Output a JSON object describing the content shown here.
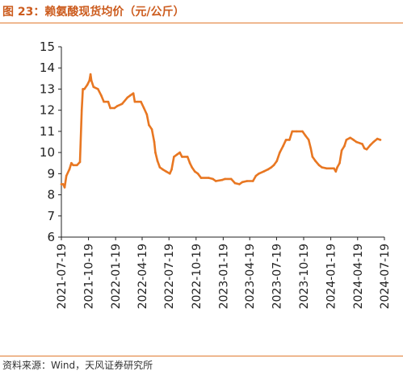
{
  "header": {
    "figure_label": "图 23：",
    "title": "赖氨酸现货均价（元/公斤）"
  },
  "source": "资料来源：Wind，天风证券研究所",
  "colors": {
    "accent": "#cc5c1e",
    "line": "#e87722",
    "rule": "#e07a2e"
  },
  "chart_data": {
    "type": "line",
    "title": "赖氨酸现货均价（元/公斤）",
    "xlabel": "",
    "ylabel": "",
    "ylim": [
      6,
      15
    ],
    "yticks": [
      6,
      7,
      8,
      9,
      10,
      11,
      12,
      13,
      14,
      15
    ],
    "xticks": [
      "2021-07-19",
      "2021-10-19",
      "2022-01-19",
      "2022-04-19",
      "2022-07-19",
      "2022-10-19",
      "2023-01-19",
      "2023-04-19",
      "2023-07-19",
      "2023-10-19",
      "2024-01-19",
      "2024-04-19",
      "2024-07-19"
    ],
    "grid": false,
    "legend": "none",
    "series": [
      {
        "name": "",
        "points": [
          [
            "2021-07-19",
            8.5
          ],
          [
            "2021-07-25",
            8.5
          ],
          [
            "2021-07-30",
            8.35
          ],
          [
            "2021-08-05",
            8.9
          ],
          [
            "2021-08-15",
            9.2
          ],
          [
            "2021-08-22",
            9.5
          ],
          [
            "2021-08-28",
            9.4
          ],
          [
            "2021-09-10",
            9.4
          ],
          [
            "2021-09-20",
            9.55
          ],
          [
            "2021-09-26",
            12.0
          ],
          [
            "2021-09-30",
            13.0
          ],
          [
            "2021-10-05",
            13.0
          ],
          [
            "2021-10-15",
            13.2
          ],
          [
            "2021-10-22",
            13.4
          ],
          [
            "2021-10-26",
            13.7
          ],
          [
            "2021-10-29",
            13.4
          ],
          [
            "2021-11-05",
            13.1
          ],
          [
            "2021-11-20",
            13.0
          ],
          [
            "2021-12-01",
            12.7
          ],
          [
            "2021-12-10",
            12.4
          ],
          [
            "2021-12-25",
            12.4
          ],
          [
            "2022-01-01",
            12.1
          ],
          [
            "2022-01-15",
            12.1
          ],
          [
            "2022-01-25",
            12.2
          ],
          [
            "2022-02-10",
            12.3
          ],
          [
            "2022-02-28",
            12.6
          ],
          [
            "2022-03-10",
            12.7
          ],
          [
            "2022-03-20",
            12.8
          ],
          [
            "2022-03-25",
            12.4
          ],
          [
            "2022-04-05",
            12.4
          ],
          [
            "2022-04-15",
            12.4
          ],
          [
            "2022-04-25",
            12.1
          ],
          [
            "2022-05-05",
            11.8
          ],
          [
            "2022-05-12",
            11.3
          ],
          [
            "2022-05-22",
            11.1
          ],
          [
            "2022-05-30",
            10.5
          ],
          [
            "2022-06-03",
            10.0
          ],
          [
            "2022-06-10",
            9.6
          ],
          [
            "2022-06-18",
            9.3
          ],
          [
            "2022-06-28",
            9.2
          ],
          [
            "2022-07-10",
            9.1
          ],
          [
            "2022-07-22",
            9.0
          ],
          [
            "2022-07-28",
            9.2
          ],
          [
            "2022-08-05",
            9.8
          ],
          [
            "2022-08-15",
            9.9
          ],
          [
            "2022-08-25",
            10.0
          ],
          [
            "2022-09-01",
            9.8
          ],
          [
            "2022-09-20",
            9.8
          ],
          [
            "2022-09-28",
            9.5
          ],
          [
            "2022-10-05",
            9.3
          ],
          [
            "2022-10-15",
            9.1
          ],
          [
            "2022-10-25",
            9.0
          ],
          [
            "2022-11-05",
            8.8
          ],
          [
            "2022-12-01",
            8.8
          ],
          [
            "2022-12-15",
            8.75
          ],
          [
            "2022-12-25",
            8.65
          ],
          [
            "2023-01-15",
            8.7
          ],
          [
            "2023-01-25",
            8.75
          ],
          [
            "2023-02-15",
            8.75
          ],
          [
            "2023-02-28",
            8.55
          ],
          [
            "2023-03-15",
            8.5
          ],
          [
            "2023-03-25",
            8.6
          ],
          [
            "2023-04-10",
            8.65
          ],
          [
            "2023-04-30",
            8.65
          ],
          [
            "2023-05-10",
            8.9
          ],
          [
            "2023-05-20",
            9.0
          ],
          [
            "2023-06-05",
            9.1
          ],
          [
            "2023-06-20",
            9.2
          ],
          [
            "2023-07-01",
            9.3
          ],
          [
            "2023-07-10",
            9.4
          ],
          [
            "2023-07-20",
            9.6
          ],
          [
            "2023-07-30",
            10.0
          ],
          [
            "2023-08-10",
            10.3
          ],
          [
            "2023-08-20",
            10.6
          ],
          [
            "2023-09-01",
            10.6
          ],
          [
            "2023-09-10",
            11.0
          ],
          [
            "2023-09-25",
            11.0
          ],
          [
            "2023-10-15",
            11.0
          ],
          [
            "2023-10-25",
            10.8
          ],
          [
            "2023-11-05",
            10.6
          ],
          [
            "2023-11-12",
            10.2
          ],
          [
            "2023-11-18",
            9.8
          ],
          [
            "2023-11-28",
            9.6
          ],
          [
            "2023-12-10",
            9.4
          ],
          [
            "2023-12-20",
            9.3
          ],
          [
            "2024-01-05",
            9.25
          ],
          [
            "2024-01-20",
            9.25
          ],
          [
            "2024-01-30",
            9.25
          ],
          [
            "2024-02-05",
            9.1
          ],
          [
            "2024-02-10",
            9.3
          ],
          [
            "2024-02-18",
            9.5
          ],
          [
            "2024-02-25",
            10.1
          ],
          [
            "2024-03-05",
            10.3
          ],
          [
            "2024-03-12",
            10.6
          ],
          [
            "2024-03-25",
            10.7
          ],
          [
            "2024-04-05",
            10.6
          ],
          [
            "2024-04-15",
            10.5
          ],
          [
            "2024-04-25",
            10.45
          ],
          [
            "2024-05-05",
            10.4
          ],
          [
            "2024-05-12",
            10.2
          ],
          [
            "2024-05-20",
            10.15
          ],
          [
            "2024-06-01",
            10.35
          ],
          [
            "2024-06-12",
            10.5
          ],
          [
            "2024-06-25",
            10.65
          ],
          [
            "2024-07-05",
            10.6
          ]
        ]
      }
    ]
  }
}
